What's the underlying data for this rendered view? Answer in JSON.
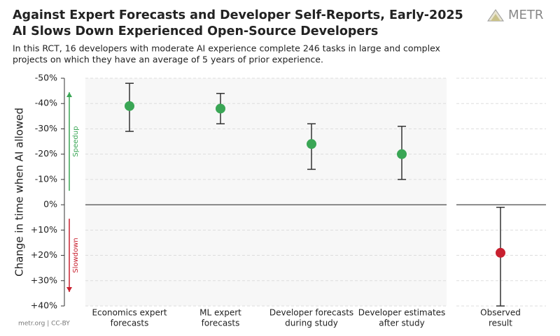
{
  "chart_data": {
    "type": "errorpoint",
    "title": [
      "Against Expert Forecasts and Developer Self-Reports, Early-2025",
      "AI Slows Down Experienced Open-Source Developers"
    ],
    "subtitle": [
      "In this RCT, 16 developers with moderate AI experience complete 246 tasks in large and complex",
      "projects on which they have an average of 5 years of prior experience."
    ],
    "logo": "METR",
    "footer": "metr.org | CC-BY",
    "ylabel": "Change in time when AI allowed",
    "annotations": [
      {
        "text": "Speedup",
        "color": "#3aa655"
      },
      {
        "text": "Slowdown",
        "color": "#c8202f"
      }
    ],
    "categories": [
      [
        "Economics expert",
        "forecasts"
      ],
      [
        "ML expert",
        "forecasts"
      ],
      [
        "Developer forecasts",
        "during study"
      ],
      [
        "Developer estimates",
        "after study"
      ],
      [
        "Observed",
        "result"
      ]
    ],
    "values": [
      -39,
      -38,
      -24,
      -20,
      19
    ],
    "low": [
      -48,
      -44,
      -32,
      -31,
      1
    ],
    "high": [
      -29,
      -32,
      -14,
      -10,
      40
    ],
    "point_colors": [
      "#3aa655",
      "#3aa655",
      "#3aa655",
      "#3aa655",
      "#c8202f"
    ],
    "ylim": [
      -50,
      40
    ],
    "yticks": [
      {
        "value": -50,
        "label": "-50%"
      },
      {
        "value": -40,
        "label": "-40%"
      },
      {
        "value": -30,
        "label": "-30%"
      },
      {
        "value": -20,
        "label": "-20%"
      },
      {
        "value": -10,
        "label": "-10%"
      },
      {
        "value": 0,
        "label": "0%"
      },
      {
        "value": 10,
        "label": "+10%"
      },
      {
        "value": 20,
        "label": "+20%"
      },
      {
        "value": 30,
        "label": "+30%"
      },
      {
        "value": 40,
        "label": "+40%"
      }
    ],
    "grid": true
  }
}
